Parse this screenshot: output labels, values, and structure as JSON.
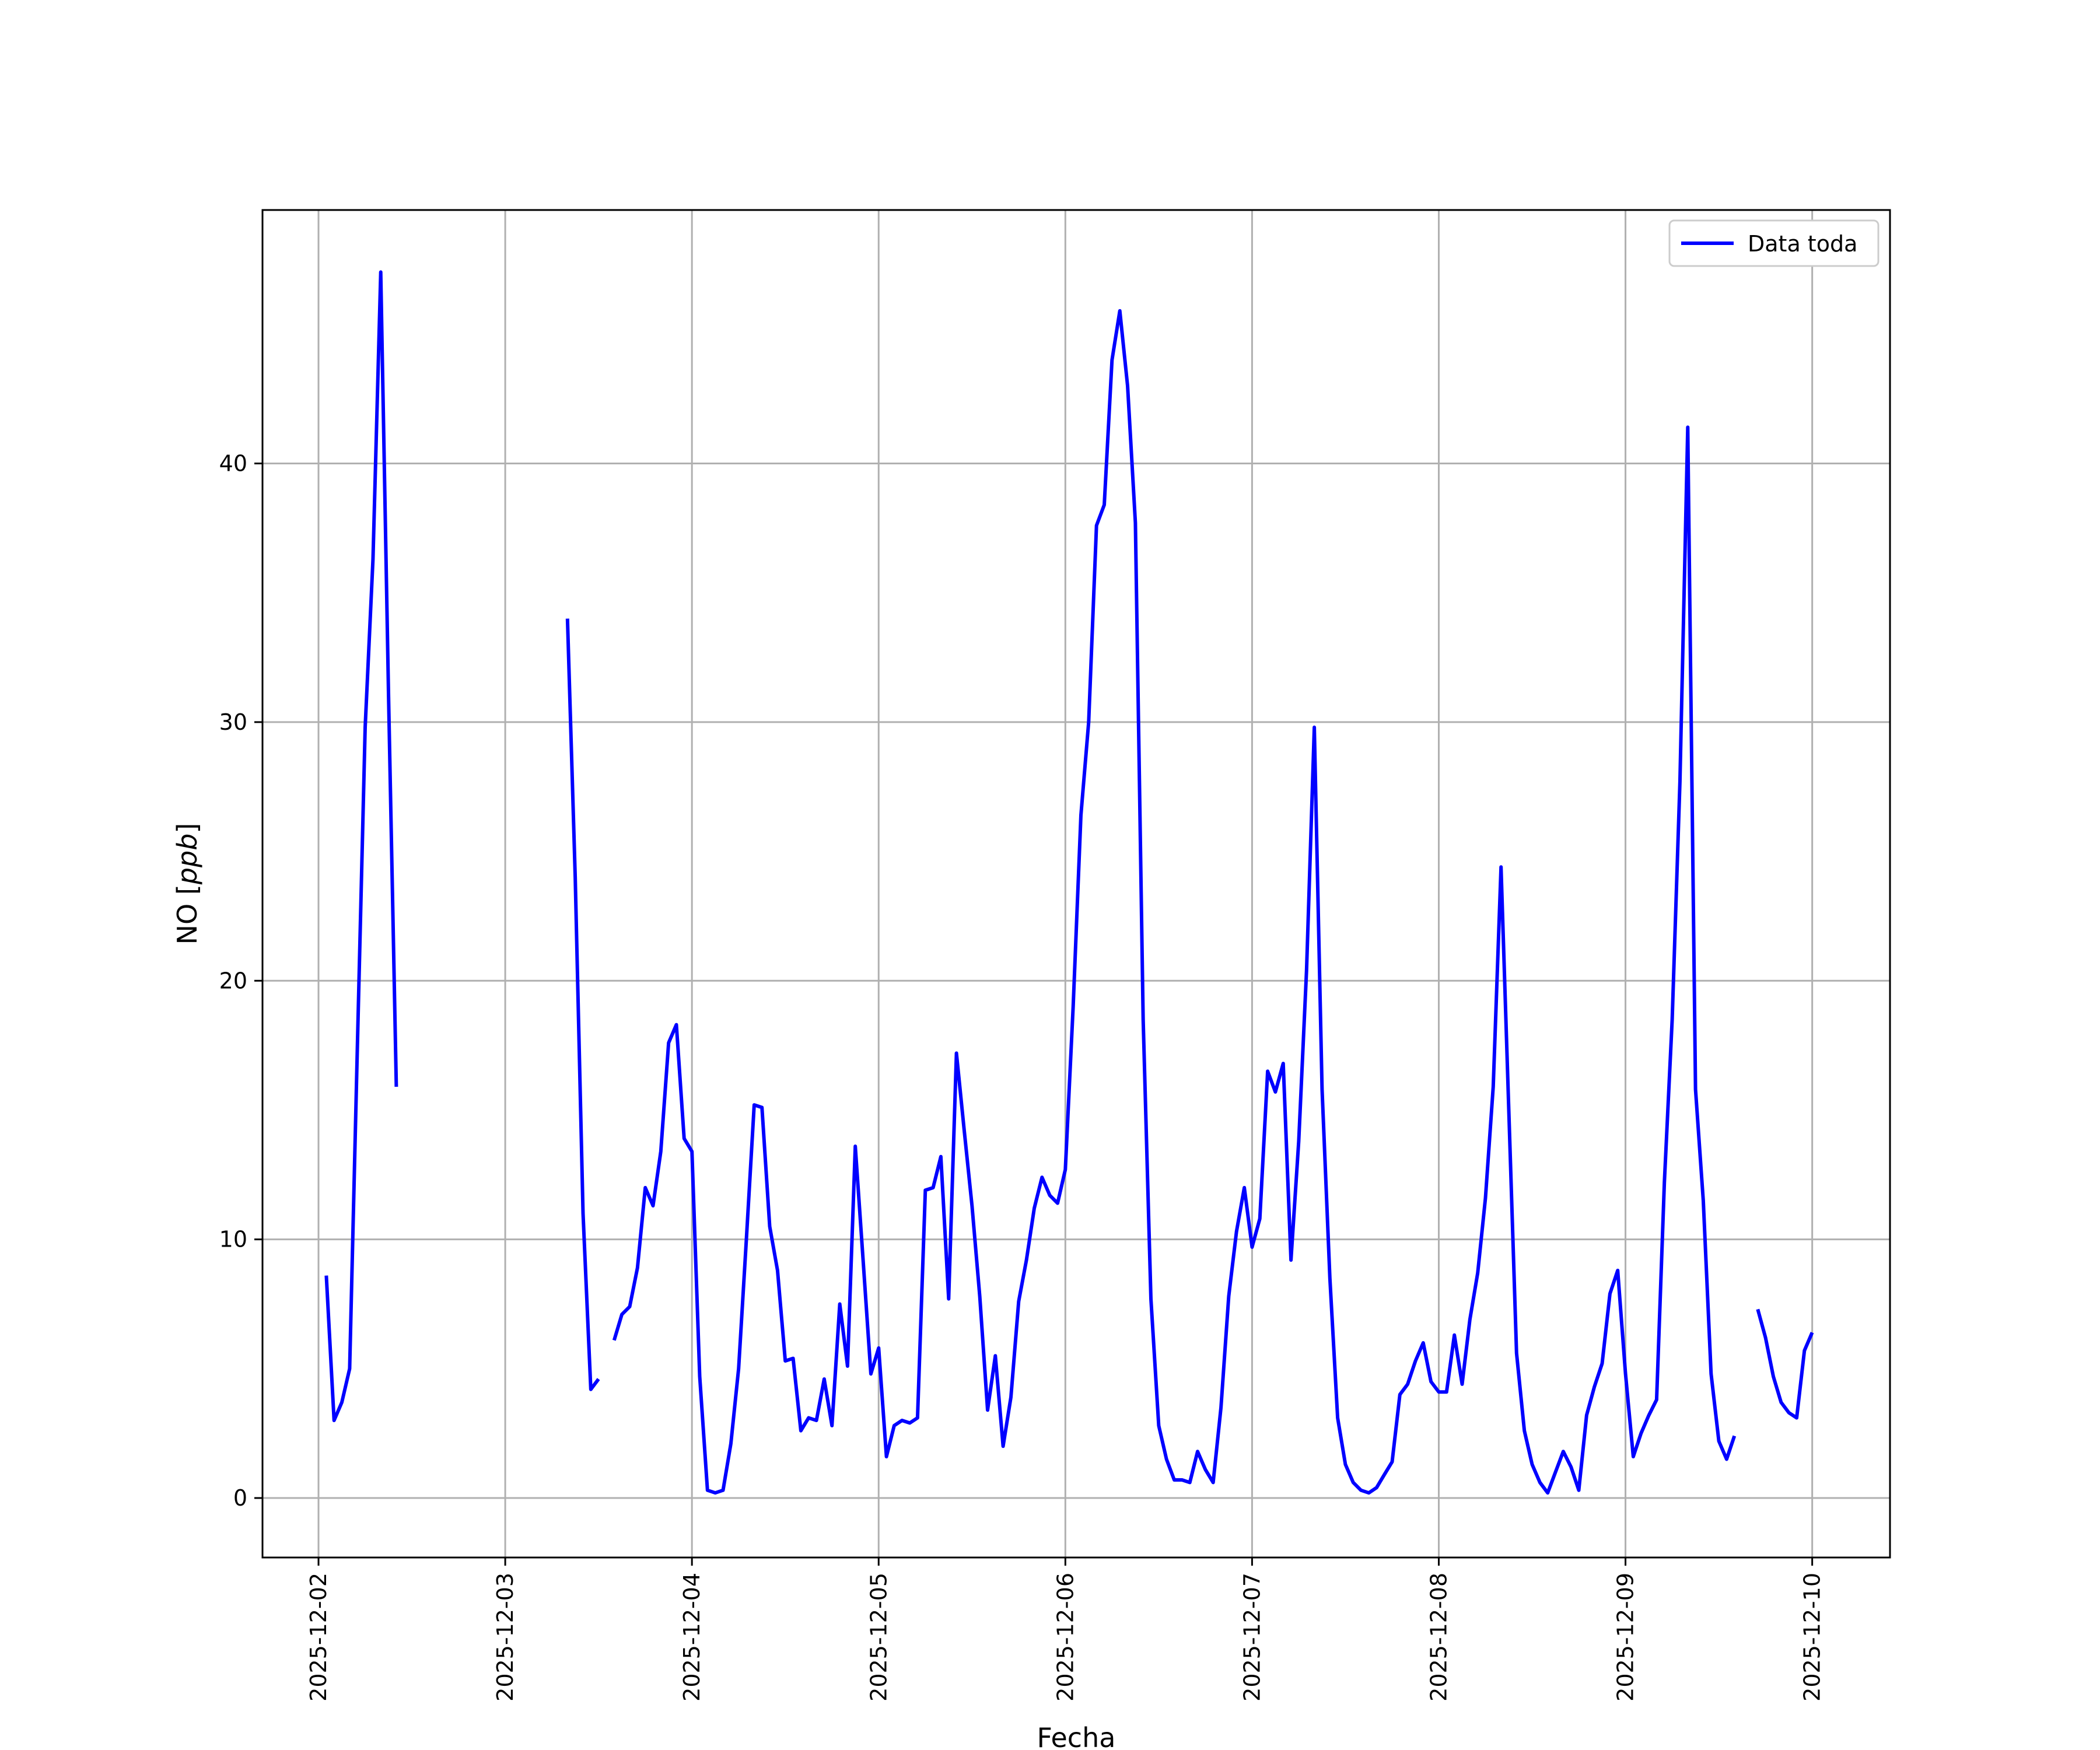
{
  "chart_data": {
    "type": "line",
    "title": "",
    "xlabel": "Fecha",
    "ylabel_text": "NO [",
    "ylabel_unit": "ppb",
    "ylabel_close": "]",
    "grid": true,
    "legend_position": "top-right",
    "colors": {
      "series": "#0000ff",
      "grid": "#b0b0b0",
      "frame": "#000000"
    },
    "xlim": [
      "2025-12-01T16:48",
      "2025-12-10T10:00"
    ],
    "ylim": [
      -2.3,
      49.8
    ],
    "x_ticks": [
      "2025-12-02",
      "2025-12-03",
      "2025-12-04",
      "2025-12-05",
      "2025-12-06",
      "2025-12-07",
      "2025-12-08",
      "2025-12-09",
      "2025-12-10"
    ],
    "y_ticks": [
      0,
      10,
      20,
      30,
      40
    ],
    "series": [
      {
        "name": "Data toda",
        "segments": [
          [
            [
              "2025-12-02T01:00",
              8.6
            ],
            [
              "2025-12-02T02:00",
              3.0
            ],
            [
              "2025-12-02T03:00",
              3.7
            ],
            [
              "2025-12-02T04:00",
              5.0
            ],
            [
              "2025-12-02T05:00",
              17.5
            ],
            [
              "2025-12-02T06:00",
              29.8
            ],
            [
              "2025-12-02T07:00",
              36.3
            ],
            [
              "2025-12-02T08:00",
              47.4
            ],
            [
              "2025-12-02T09:00",
              31.0
            ],
            [
              "2025-12-02T10:00",
              15.9
            ]
          ],
          [
            [
              "2025-12-03T08:00",
              34.0
            ],
            [
              "2025-12-03T09:00",
              24.0
            ],
            [
              "2025-12-03T10:00",
              11.0
            ],
            [
              "2025-12-03T11:00",
              4.2
            ],
            [
              "2025-12-03T12:00",
              4.6
            ]
          ],
          [
            [
              "2025-12-03T14:00",
              6.1
            ],
            [
              "2025-12-03T15:00",
              7.1
            ],
            [
              "2025-12-03T16:00",
              7.4
            ],
            [
              "2025-12-03T17:00",
              8.9
            ],
            [
              "2025-12-03T18:00",
              12.0
            ],
            [
              "2025-12-03T19:00",
              11.3
            ],
            [
              "2025-12-03T20:00",
              13.4
            ],
            [
              "2025-12-03T21:00",
              17.6
            ],
            [
              "2025-12-03T22:00",
              18.3
            ],
            [
              "2025-12-03T23:00",
              13.9
            ],
            [
              "2025-12-04T00:00",
              13.4
            ],
            [
              "2025-12-04T01:00",
              4.7
            ],
            [
              "2025-12-04T02:00",
              0.3
            ],
            [
              "2025-12-04T03:00",
              0.2
            ],
            [
              "2025-12-04T04:00",
              0.3
            ],
            [
              "2025-12-04T05:00",
              2.1
            ],
            [
              "2025-12-04T06:00",
              5.0
            ],
            [
              "2025-12-04T07:00",
              10.0
            ],
            [
              "2025-12-04T08:00",
              15.2
            ],
            [
              "2025-12-04T09:00",
              15.1
            ],
            [
              "2025-12-04T10:00",
              10.5
            ],
            [
              "2025-12-04T11:00",
              8.8
            ],
            [
              "2025-12-04T12:00",
              5.3
            ],
            [
              "2025-12-04T13:00",
              5.4
            ],
            [
              "2025-12-04T14:00",
              2.6
            ],
            [
              "2025-12-04T15:00",
              3.1
            ],
            [
              "2025-12-04T16:00",
              3.0
            ],
            [
              "2025-12-04T17:00",
              4.6
            ],
            [
              "2025-12-04T18:00",
              2.8
            ],
            [
              "2025-12-04T19:00",
              7.5
            ],
            [
              "2025-12-04T20:00",
              5.1
            ],
            [
              "2025-12-04T21:00",
              13.6
            ],
            [
              "2025-12-04T22:00",
              9.2
            ],
            [
              "2025-12-04T23:00",
              4.8
            ],
            [
              "2025-12-05T00:00",
              5.8
            ],
            [
              "2025-12-05T01:00",
              1.6
            ],
            [
              "2025-12-05T02:00",
              2.8
            ],
            [
              "2025-12-05T03:00",
              3.0
            ],
            [
              "2025-12-05T04:00",
              2.9
            ],
            [
              "2025-12-05T05:00",
              3.1
            ],
            [
              "2025-12-05T06:00",
              11.9
            ],
            [
              "2025-12-05T07:00",
              12.0
            ],
            [
              "2025-12-05T08:00",
              13.2
            ],
            [
              "2025-12-05T09:00",
              7.7
            ],
            [
              "2025-12-05T10:00",
              17.2
            ],
            [
              "2025-12-05T11:00",
              14.2
            ],
            [
              "2025-12-05T12:00",
              11.3
            ],
            [
              "2025-12-05T13:00",
              7.8
            ],
            [
              "2025-12-05T14:00",
              3.4
            ],
            [
              "2025-12-05T15:00",
              5.5
            ],
            [
              "2025-12-05T16:00",
              2.0
            ],
            [
              "2025-12-05T17:00",
              3.9
            ],
            [
              "2025-12-05T18:00",
              7.6
            ],
            [
              "2025-12-05T19:00",
              9.2
            ],
            [
              "2025-12-05T20:00",
              11.2
            ],
            [
              "2025-12-05T21:00",
              12.4
            ],
            [
              "2025-12-05T22:00",
              11.7
            ],
            [
              "2025-12-05T23:00",
              11.4
            ],
            [
              "2025-12-06T00:00",
              12.7
            ],
            [
              "2025-12-06T01:00",
              19.0
            ],
            [
              "2025-12-06T02:00",
              26.4
            ],
            [
              "2025-12-06T03:00",
              30.0
            ],
            [
              "2025-12-06T04:00",
              37.6
            ],
            [
              "2025-12-06T05:00",
              38.4
            ],
            [
              "2025-12-06T06:00",
              44.0
            ],
            [
              "2025-12-06T07:00",
              45.9
            ],
            [
              "2025-12-06T08:00",
              43.0
            ],
            [
              "2025-12-06T09:00",
              37.7
            ],
            [
              "2025-12-06T10:00",
              18.5
            ],
            [
              "2025-12-06T11:00",
              7.7
            ],
            [
              "2025-12-06T12:00",
              2.8
            ],
            [
              "2025-12-06T13:00",
              1.5
            ],
            [
              "2025-12-06T14:00",
              0.7
            ],
            [
              "2025-12-06T15:00",
              0.7
            ],
            [
              "2025-12-06T16:00",
              0.6
            ],
            [
              "2025-12-06T17:00",
              1.8
            ],
            [
              "2025-12-06T18:00",
              1.1
            ],
            [
              "2025-12-06T19:00",
              0.6
            ],
            [
              "2025-12-06T20:00",
              3.5
            ],
            [
              "2025-12-06T21:00",
              7.8
            ],
            [
              "2025-12-06T22:00",
              10.3
            ],
            [
              "2025-12-06T23:00",
              12.0
            ],
            [
              "2025-12-07T00:00",
              9.7
            ],
            [
              "2025-12-07T01:00",
              10.8
            ],
            [
              "2025-12-07T02:00",
              16.5
            ],
            [
              "2025-12-07T03:00",
              15.7
            ],
            [
              "2025-12-07T04:00",
              16.8
            ],
            [
              "2025-12-07T05:00",
              9.2
            ],
            [
              "2025-12-07T06:00",
              13.8
            ],
            [
              "2025-12-07T07:00",
              20.4
            ],
            [
              "2025-12-07T08:00",
              29.8
            ],
            [
              "2025-12-07T09:00",
              15.8
            ],
            [
              "2025-12-07T10:00",
              8.5
            ],
            [
              "2025-12-07T11:00",
              3.1
            ],
            [
              "2025-12-07T12:00",
              1.3
            ],
            [
              "2025-12-07T13:00",
              0.6
            ],
            [
              "2025-12-07T14:00",
              0.3
            ],
            [
              "2025-12-07T15:00",
              0.2
            ],
            [
              "2025-12-07T16:00",
              0.4
            ],
            [
              "2025-12-07T17:00",
              0.9
            ],
            [
              "2025-12-07T18:00",
              1.4
            ],
            [
              "2025-12-07T19:00",
              4.0
            ],
            [
              "2025-12-07T20:00",
              4.4
            ],
            [
              "2025-12-07T21:00",
              5.3
            ],
            [
              "2025-12-07T22:00",
              6.0
            ],
            [
              "2025-12-07T23:00",
              4.5
            ],
            [
              "2025-12-08T00:00",
              4.1
            ],
            [
              "2025-12-08T01:00",
              4.1
            ],
            [
              "2025-12-08T02:00",
              6.3
            ],
            [
              "2025-12-08T03:00",
              4.4
            ],
            [
              "2025-12-08T04:00",
              6.9
            ],
            [
              "2025-12-08T05:00",
              8.7
            ],
            [
              "2025-12-08T06:00",
              11.6
            ],
            [
              "2025-12-08T07:00",
              15.9
            ],
            [
              "2025-12-08T08:00",
              24.4
            ],
            [
              "2025-12-08T09:00",
              15.0
            ],
            [
              "2025-12-08T10:00",
              5.6
            ],
            [
              "2025-12-08T11:00",
              2.6
            ],
            [
              "2025-12-08T12:00",
              1.3
            ],
            [
              "2025-12-08T13:00",
              0.6
            ],
            [
              "2025-12-08T14:00",
              0.2
            ],
            [
              "2025-12-08T15:00",
              1.0
            ],
            [
              "2025-12-08T16:00",
              1.8
            ],
            [
              "2025-12-08T17:00",
              1.2
            ],
            [
              "2025-12-08T18:00",
              0.3
            ],
            [
              "2025-12-08T19:00",
              3.2
            ],
            [
              "2025-12-08T20:00",
              4.3
            ],
            [
              "2025-12-08T21:00",
              5.2
            ],
            [
              "2025-12-08T22:00",
              7.9
            ],
            [
              "2025-12-08T23:00",
              8.8
            ],
            [
              "2025-12-09T00:00",
              4.8
            ],
            [
              "2025-12-09T01:00",
              1.6
            ],
            [
              "2025-12-09T02:00",
              2.5
            ],
            [
              "2025-12-09T03:00",
              3.2
            ],
            [
              "2025-12-09T04:00",
              3.8
            ],
            [
              "2025-12-09T05:00",
              12.2
            ],
            [
              "2025-12-09T06:00",
              18.5
            ],
            [
              "2025-12-09T07:00",
              27.7
            ],
            [
              "2025-12-09T08:00",
              41.4
            ],
            [
              "2025-12-09T09:00",
              15.8
            ],
            [
              "2025-12-09T10:00",
              11.5
            ],
            [
              "2025-12-09T11:00",
              4.8
            ],
            [
              "2025-12-09T12:00",
              2.2
            ],
            [
              "2025-12-09T13:00",
              1.5
            ],
            [
              "2025-12-09T14:00",
              2.4
            ]
          ],
          [
            [
              "2025-12-09T17:00",
              7.3
            ],
            [
              "2025-12-09T18:00",
              6.2
            ],
            [
              "2025-12-09T19:00",
              4.7
            ],
            [
              "2025-12-09T20:00",
              3.7
            ],
            [
              "2025-12-09T21:00",
              3.3
            ],
            [
              "2025-12-09T22:00",
              3.1
            ],
            [
              "2025-12-09T23:00",
              5.7
            ],
            [
              "2025-12-10T00:00",
              6.4
            ]
          ]
        ]
      }
    ]
  }
}
